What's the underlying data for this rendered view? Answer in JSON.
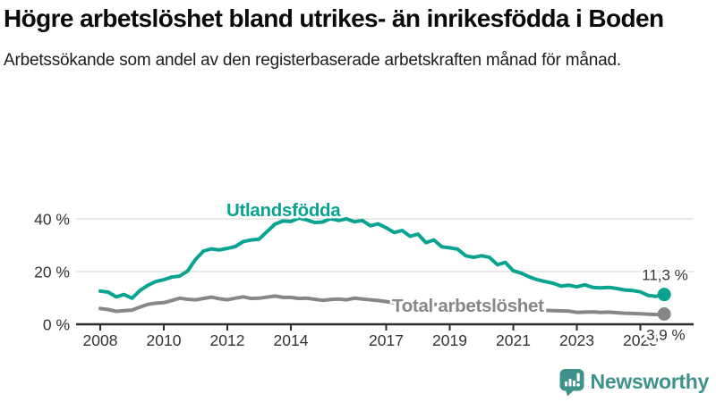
{
  "title": "Högre arbetslöshet bland utrikes- än inrikesfödda i Boden",
  "subtitle": "Arbetssökande som andel av den registerbaserade arbetskraften månad för månad.",
  "logo": {
    "text": "Newsworthy",
    "icon": "newsworthy-speech-bubble-barchart-icon",
    "icon_color": "#3f918c"
  },
  "colors": {
    "foreign_series": "#09a391",
    "total_series": "#878787",
    "grid": "#d9d9d9",
    "axis": "#2d2d2d",
    "tick_label": "#333333",
    "value_label": "#333333"
  },
  "chart_data": {
    "type": "line",
    "title": "Högre arbetslöshet bland utrikes- än inrikesfödda i Boden",
    "xlabel": "",
    "ylabel": "",
    "grid": "horizontal",
    "x_range": [
      2007.25,
      2026.7
    ],
    "ylim": [
      0,
      44
    ],
    "y_ticks": [
      {
        "value": 0,
        "label": "0 %"
      },
      {
        "value": 20,
        "label": "20 %"
      },
      {
        "value": 40,
        "label": "40 %"
      }
    ],
    "x_ticks": [
      {
        "year": 2008,
        "label": "2008"
      },
      {
        "year": 2010,
        "label": "2010"
      },
      {
        "year": 2012,
        "label": "2012"
      },
      {
        "year": 2014,
        "label": "2014"
      },
      {
        "year": 2017,
        "label": "2017"
      },
      {
        "year": 2019,
        "label": "2019"
      },
      {
        "year": 2021,
        "label": "2021"
      },
      {
        "year": 2023,
        "label": "2023"
      },
      {
        "year": 2025,
        "label": "2025"
      }
    ],
    "series": [
      {
        "name": "Utlandsfödda",
        "color": "#09a391",
        "end_label": "11,3 %",
        "end_value": 11.3,
        "points": [
          [
            2008.0,
            12.6
          ],
          [
            2008.25,
            12.2
          ],
          [
            2008.5,
            10.4
          ],
          [
            2008.75,
            11.3
          ],
          [
            2009.0,
            9.9
          ],
          [
            2009.25,
            12.8
          ],
          [
            2009.5,
            14.8
          ],
          [
            2009.75,
            16.2
          ],
          [
            2010.0,
            16.9
          ],
          [
            2010.25,
            17.9
          ],
          [
            2010.5,
            18.3
          ],
          [
            2010.75,
            20.2
          ],
          [
            2011.0,
            24.6
          ],
          [
            2011.25,
            27.8
          ],
          [
            2011.5,
            28.6
          ],
          [
            2011.75,
            28.2
          ],
          [
            2012.0,
            28.8
          ],
          [
            2012.25,
            29.5
          ],
          [
            2012.5,
            31.4
          ],
          [
            2012.75,
            32.0
          ],
          [
            2013.0,
            32.3
          ],
          [
            2013.25,
            35.2
          ],
          [
            2013.5,
            38.0
          ],
          [
            2013.75,
            39.2
          ],
          [
            2014.0,
            39.0
          ],
          [
            2014.25,
            40.3
          ],
          [
            2014.5,
            39.6
          ],
          [
            2014.75,
            38.6
          ],
          [
            2015.0,
            38.8
          ],
          [
            2015.25,
            40.1
          ],
          [
            2015.5,
            39.4
          ],
          [
            2015.75,
            40.0
          ],
          [
            2016.0,
            38.9
          ],
          [
            2016.25,
            39.4
          ],
          [
            2016.5,
            37.4
          ],
          [
            2016.75,
            38.1
          ],
          [
            2017.0,
            36.6
          ],
          [
            2017.25,
            34.8
          ],
          [
            2017.5,
            35.6
          ],
          [
            2017.75,
            33.4
          ],
          [
            2018.0,
            34.2
          ],
          [
            2018.25,
            31.0
          ],
          [
            2018.5,
            32.0
          ],
          [
            2018.75,
            29.4
          ],
          [
            2019.0,
            29.0
          ],
          [
            2019.25,
            28.5
          ],
          [
            2019.5,
            26.0
          ],
          [
            2019.75,
            25.4
          ],
          [
            2020.0,
            26.0
          ],
          [
            2020.25,
            25.4
          ],
          [
            2020.5,
            22.6
          ],
          [
            2020.75,
            23.5
          ],
          [
            2021.0,
            20.3
          ],
          [
            2021.25,
            19.4
          ],
          [
            2021.5,
            18.0
          ],
          [
            2021.75,
            16.9
          ],
          [
            2022.0,
            16.2
          ],
          [
            2022.25,
            15.6
          ],
          [
            2022.5,
            14.5
          ],
          [
            2022.75,
            14.8
          ],
          [
            2023.0,
            14.2
          ],
          [
            2023.25,
            15.0
          ],
          [
            2023.5,
            14.0
          ],
          [
            2023.75,
            13.8
          ],
          [
            2024.0,
            14.0
          ],
          [
            2024.25,
            13.6
          ],
          [
            2024.5,
            13.0
          ],
          [
            2024.75,
            12.8
          ],
          [
            2025.0,
            12.3
          ],
          [
            2025.25,
            10.9
          ],
          [
            2025.5,
            10.6
          ],
          [
            2025.75,
            11.3
          ]
        ]
      },
      {
        "name": "Total arbetslöshet",
        "color": "#878787",
        "end_label": "3,9 %",
        "end_value": 3.9,
        "points": [
          [
            2008.0,
            6.0
          ],
          [
            2008.25,
            5.6
          ],
          [
            2008.5,
            4.9
          ],
          [
            2008.75,
            5.2
          ],
          [
            2009.0,
            5.4
          ],
          [
            2009.25,
            6.5
          ],
          [
            2009.5,
            7.6
          ],
          [
            2009.75,
            8.0
          ],
          [
            2010.0,
            8.2
          ],
          [
            2010.25,
            9.0
          ],
          [
            2010.5,
            9.9
          ],
          [
            2010.75,
            9.5
          ],
          [
            2011.0,
            9.3
          ],
          [
            2011.25,
            9.8
          ],
          [
            2011.5,
            10.3
          ],
          [
            2011.75,
            9.7
          ],
          [
            2012.0,
            9.3
          ],
          [
            2012.25,
            9.9
          ],
          [
            2012.5,
            10.4
          ],
          [
            2012.75,
            9.8
          ],
          [
            2013.0,
            9.9
          ],
          [
            2013.25,
            10.3
          ],
          [
            2013.5,
            10.7
          ],
          [
            2013.75,
            10.2
          ],
          [
            2014.0,
            10.2
          ],
          [
            2014.25,
            9.8
          ],
          [
            2014.5,
            9.9
          ],
          [
            2014.75,
            9.5
          ],
          [
            2015.0,
            9.1
          ],
          [
            2015.25,
            9.4
          ],
          [
            2015.5,
            9.6
          ],
          [
            2015.75,
            9.3
          ],
          [
            2016.0,
            9.9
          ],
          [
            2016.25,
            9.6
          ],
          [
            2016.5,
            9.3
          ],
          [
            2016.75,
            9.0
          ],
          [
            2017.0,
            8.6
          ],
          [
            2017.25,
            8.2
          ],
          [
            2017.5,
            8.4
          ],
          [
            2017.75,
            8.0
          ],
          [
            2018.0,
            7.8
          ],
          [
            2018.25,
            7.5
          ],
          [
            2018.5,
            7.6
          ],
          [
            2018.75,
            7.2
          ],
          [
            2019.0,
            7.0
          ],
          [
            2019.25,
            6.8
          ],
          [
            2019.5,
            6.6
          ],
          [
            2019.75,
            6.9
          ],
          [
            2020.0,
            7.2
          ],
          [
            2020.25,
            7.4
          ],
          [
            2020.5,
            7.0
          ],
          [
            2020.75,
            6.6
          ],
          [
            2021.0,
            6.3
          ],
          [
            2021.25,
            6.0
          ],
          [
            2021.5,
            5.8
          ],
          [
            2021.75,
            5.5
          ],
          [
            2022.0,
            5.3
          ],
          [
            2022.25,
            5.2
          ],
          [
            2022.5,
            5.1
          ],
          [
            2022.75,
            5.0
          ],
          [
            2023.0,
            4.5
          ],
          [
            2023.25,
            4.6
          ],
          [
            2023.5,
            4.7
          ],
          [
            2023.75,
            4.5
          ],
          [
            2024.0,
            4.6
          ],
          [
            2024.25,
            4.4
          ],
          [
            2024.5,
            4.2
          ],
          [
            2024.75,
            4.1
          ],
          [
            2025.0,
            4.0
          ],
          [
            2025.25,
            3.8
          ],
          [
            2025.5,
            3.7
          ],
          [
            2025.75,
            3.9
          ]
        ]
      }
    ]
  }
}
